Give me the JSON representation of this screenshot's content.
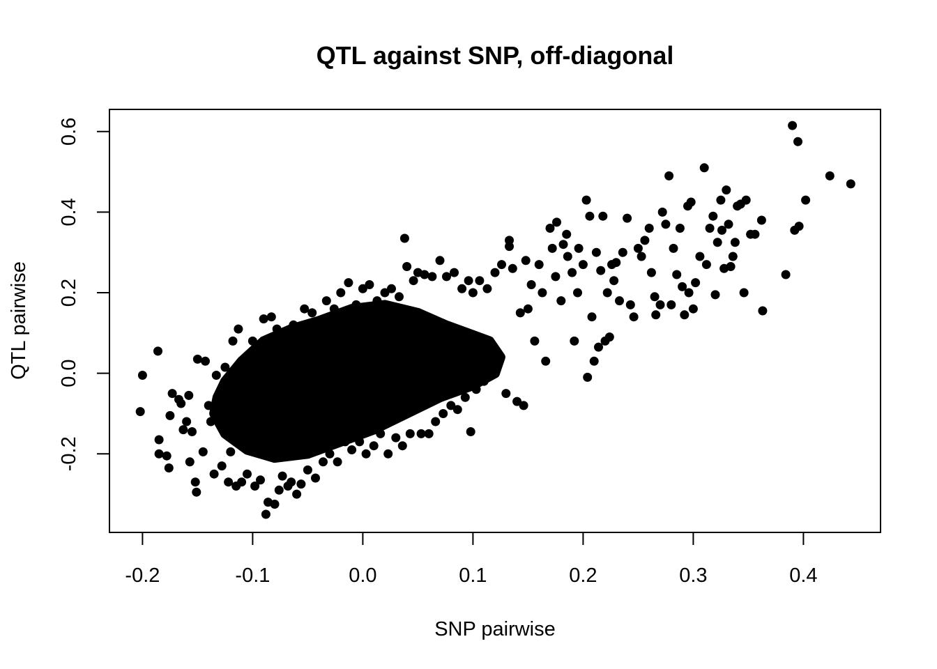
{
  "chart_data": {
    "type": "scatter",
    "title": "QTL against SNP, off-diagonal",
    "xlabel": "SNP pairwise",
    "ylabel": "QTL pairwise",
    "xlim": [
      -0.23,
      0.47
    ],
    "ylim": [
      -0.395,
      0.655
    ],
    "x_ticks": [
      -0.2,
      -0.1,
      0.0,
      0.1,
      0.2,
      0.3,
      0.4
    ],
    "x_tick_labels": [
      "-0.2",
      "-0.1",
      "0.0",
      "0.1",
      "0.2",
      "0.3",
      "0.4"
    ],
    "y_ticks": [
      -0.2,
      0.0,
      0.2,
      0.4,
      0.6
    ],
    "y_tick_labels": [
      "-0.2",
      "0.0",
      "0.2",
      "0.4",
      "0.6"
    ],
    "grid": false,
    "legend": "none",
    "point_color": "#000000",
    "series": [
      {
        "points": [
          [
            -0.2,
            -0.005
          ],
          [
            -0.202,
            -0.095
          ],
          [
            -0.186,
            0.055
          ],
          [
            -0.185,
            -0.165
          ],
          [
            -0.185,
            -0.2
          ],
          [
            -0.178,
            -0.205
          ],
          [
            -0.176,
            -0.235
          ],
          [
            -0.175,
            -0.105
          ],
          [
            -0.173,
            -0.05
          ],
          [
            -0.167,
            -0.065
          ],
          [
            -0.165,
            -0.075
          ],
          [
            -0.163,
            -0.14
          ],
          [
            -0.16,
            -0.12
          ],
          [
            -0.158,
            -0.055
          ],
          [
            -0.157,
            -0.22
          ],
          [
            -0.155,
            -0.145
          ],
          [
            -0.152,
            -0.27
          ],
          [
            -0.151,
            -0.295
          ],
          [
            -0.15,
            0.035
          ],
          [
            -0.145,
            -0.195
          ],
          [
            -0.143,
            0.03
          ],
          [
            -0.14,
            -0.08
          ],
          [
            -0.138,
            -0.12
          ],
          [
            -0.135,
            -0.25
          ],
          [
            -0.133,
            -0.005
          ],
          [
            -0.13,
            -0.06
          ],
          [
            -0.128,
            -0.23
          ],
          [
            -0.125,
            0.015
          ],
          [
            -0.122,
            -0.27
          ],
          [
            -0.12,
            -0.195
          ],
          [
            -0.118,
            0.08
          ],
          [
            -0.115,
            -0.28
          ],
          [
            -0.113,
            0.11
          ],
          [
            -0.11,
            -0.27
          ],
          [
            -0.108,
            0.035
          ],
          [
            -0.105,
            -0.25
          ],
          [
            -0.1,
            0.08
          ],
          [
            -0.098,
            -0.28
          ],
          [
            -0.096,
            0.06
          ],
          [
            -0.093,
            -0.265
          ],
          [
            -0.09,
            0.135
          ],
          [
            -0.088,
            -0.35
          ],
          [
            -0.086,
            -0.32
          ],
          [
            -0.083,
            0.14
          ],
          [
            -0.08,
            -0.325
          ],
          [
            -0.078,
            0.11
          ],
          [
            -0.076,
            -0.29
          ],
          [
            -0.073,
            -0.255
          ],
          [
            -0.07,
            0.09
          ],
          [
            -0.068,
            -0.28
          ],
          [
            -0.065,
            -0.27
          ],
          [
            -0.063,
            0.12
          ],
          [
            -0.06,
            -0.3
          ],
          [
            -0.056,
            -0.275
          ],
          [
            -0.053,
            0.16
          ],
          [
            -0.05,
            -0.24
          ],
          [
            -0.046,
            0.15
          ],
          [
            -0.043,
            -0.26
          ],
          [
            -0.04,
            0.13
          ],
          [
            -0.036,
            -0.22
          ],
          [
            -0.033,
            0.18
          ],
          [
            -0.03,
            -0.2
          ],
          [
            -0.026,
            0.16
          ],
          [
            -0.023,
            -0.22
          ],
          [
            -0.02,
            0.2
          ],
          [
            -0.016,
            -0.17
          ],
          [
            -0.013,
            0.225
          ],
          [
            -0.01,
            -0.19
          ],
          [
            -0.006,
            0.17
          ],
          [
            -0.003,
            -0.17
          ],
          [
            0.0,
            0.21
          ],
          [
            0.003,
            -0.2
          ],
          [
            0.006,
            0.22
          ],
          [
            0.01,
            -0.18
          ],
          [
            0.013,
            0.18
          ],
          [
            0.016,
            -0.15
          ],
          [
            0.02,
            0.2
          ],
          [
            0.023,
            -0.2
          ],
          [
            0.026,
            0.21
          ],
          [
            0.03,
            -0.16
          ],
          [
            0.033,
            0.19
          ],
          [
            0.036,
            -0.18
          ],
          [
            0.038,
            0.335
          ],
          [
            0.04,
            0.265
          ],
          [
            0.043,
            -0.15
          ],
          [
            0.046,
            0.23
          ],
          [
            0.05,
            0.25
          ],
          [
            0.053,
            -0.15
          ],
          [
            0.056,
            0.245
          ],
          [
            0.06,
            -0.15
          ],
          [
            0.063,
            0.24
          ],
          [
            0.066,
            -0.12
          ],
          [
            0.07,
            0.28
          ],
          [
            0.073,
            -0.1
          ],
          [
            0.076,
            0.24
          ],
          [
            0.08,
            -0.08
          ],
          [
            0.083,
            0.25
          ],
          [
            0.086,
            -0.09
          ],
          [
            0.09,
            0.21
          ],
          [
            0.093,
            -0.06
          ],
          [
            0.096,
            0.23
          ],
          [
            0.098,
            -0.145
          ],
          [
            0.1,
            0.2
          ],
          [
            0.103,
            -0.04
          ],
          [
            0.106,
            0.23
          ],
          [
            0.11,
            -0.02
          ],
          [
            0.113,
            0.21
          ],
          [
            0.116,
            0.02
          ],
          [
            0.12,
            0.25
          ],
          [
            0.123,
            0.03
          ],
          [
            0.126,
            0.27
          ],
          [
            0.13,
            -0.05
          ],
          [
            0.133,
            0.33
          ],
          [
            0.133,
            0.315
          ],
          [
            0.136,
            0.26
          ],
          [
            0.14,
            -0.07
          ],
          [
            0.143,
            0.15
          ],
          [
            0.146,
            -0.08
          ],
          [
            0.148,
            0.28
          ],
          [
            0.15,
            0.16
          ],
          [
            0.153,
            0.22
          ],
          [
            0.156,
            0.08
          ],
          [
            0.16,
            0.27
          ],
          [
            0.163,
            0.2
          ],
          [
            0.166,
            0.03
          ],
          [
            0.17,
            0.36
          ],
          [
            0.172,
            0.31
          ],
          [
            0.175,
            0.24
          ],
          [
            0.176,
            0.375
          ],
          [
            0.18,
            0.18
          ],
          [
            0.182,
            0.32
          ],
          [
            0.185,
            0.345
          ],
          [
            0.186,
            0.29
          ],
          [
            0.19,
            0.25
          ],
          [
            0.192,
            0.08
          ],
          [
            0.195,
            0.2
          ],
          [
            0.196,
            0.31
          ],
          [
            0.2,
            0.27
          ],
          [
            0.203,
            0.43
          ],
          [
            0.204,
            -0.01
          ],
          [
            0.206,
            0.39
          ],
          [
            0.208,
            0.14
          ],
          [
            0.21,
            0.03
          ],
          [
            0.212,
            0.3
          ],
          [
            0.214,
            0.065
          ],
          [
            0.216,
            0.255
          ],
          [
            0.218,
            0.39
          ],
          [
            0.22,
            0.08
          ],
          [
            0.222,
            0.2
          ],
          [
            0.224,
            0.09
          ],
          [
            0.226,
            0.27
          ],
          [
            0.228,
            0.23
          ],
          [
            0.23,
            0.275
          ],
          [
            0.233,
            0.18
          ],
          [
            0.236,
            0.3
          ],
          [
            0.24,
            0.385
          ],
          [
            0.243,
            0.17
          ],
          [
            0.246,
            0.14
          ],
          [
            0.25,
            0.31
          ],
          [
            0.253,
            0.29
          ],
          [
            0.256,
            0.33
          ],
          [
            0.26,
            0.36
          ],
          [
            0.262,
            0.25
          ],
          [
            0.265,
            0.19
          ],
          [
            0.266,
            0.145
          ],
          [
            0.27,
            0.17
          ],
          [
            0.272,
            0.4
          ],
          [
            0.275,
            0.37
          ],
          [
            0.278,
            0.49
          ],
          [
            0.28,
            0.17
          ],
          [
            0.282,
            0.31
          ],
          [
            0.285,
            0.245
          ],
          [
            0.288,
            0.36
          ],
          [
            0.29,
            0.215
          ],
          [
            0.292,
            0.145
          ],
          [
            0.295,
            0.415
          ],
          [
            0.296,
            0.2
          ],
          [
            0.298,
            0.425
          ],
          [
            0.3,
            0.16
          ],
          [
            0.302,
            0.225
          ],
          [
            0.306,
            0.29
          ],
          [
            0.31,
            0.51
          ],
          [
            0.312,
            0.27
          ],
          [
            0.315,
            0.36
          ],
          [
            0.318,
            0.39
          ],
          [
            0.32,
            0.195
          ],
          [
            0.322,
            0.325
          ],
          [
            0.325,
            0.43
          ],
          [
            0.326,
            0.355
          ],
          [
            0.328,
            0.26
          ],
          [
            0.33,
            0.455
          ],
          [
            0.332,
            0.37
          ],
          [
            0.334,
            0.265
          ],
          [
            0.336,
            0.29
          ],
          [
            0.338,
            0.325
          ],
          [
            0.34,
            0.415
          ],
          [
            0.343,
            0.42
          ],
          [
            0.346,
            0.2
          ],
          [
            0.348,
            0.43
          ],
          [
            0.352,
            0.345
          ],
          [
            0.356,
            0.345
          ],
          [
            0.362,
            0.38
          ],
          [
            0.363,
            0.155
          ],
          [
            0.384,
            0.245
          ],
          [
            0.39,
            0.615
          ],
          [
            0.392,
            0.355
          ],
          [
            0.395,
            0.575
          ],
          [
            0.396,
            0.365
          ],
          [
            0.402,
            0.43
          ],
          [
            0.424,
            0.49
          ],
          [
            0.443,
            0.47
          ]
        ]
      }
    ]
  }
}
